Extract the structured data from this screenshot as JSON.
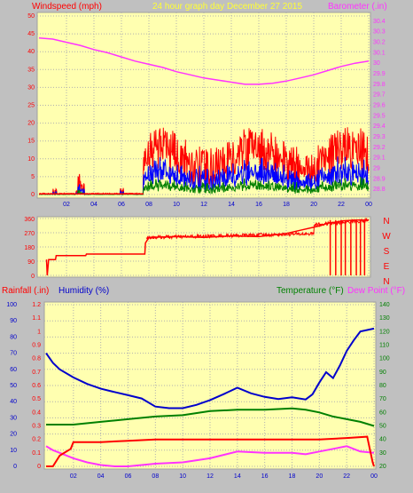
{
  "colors": {
    "background": "#c0c0c0",
    "plot_bg": "#ffffb0",
    "grid": "#b0b0b0",
    "wind": "#ff0000",
    "gust_blue": "#0000ff",
    "green": "#008000",
    "barometer": "#ff33ff",
    "title_yellow": "#ffff33",
    "rain": "#ff0000",
    "humidity": "#0000cc",
    "temperature": "#008000",
    "dewpoint": "#ff33ff"
  },
  "header": {
    "windspeed_label": "Windspeed (mph)",
    "title": "24 hour graph day   December 27 2015",
    "barometer_label": "Barometer (.in)"
  },
  "lower_header": {
    "rainfall_label": "Rainfall (.in)",
    "humidity_label": "Humidity (%)",
    "temperature_label": "Temperature (°F)",
    "dewpoint_label": "Dew Point (°F)"
  },
  "chart_data": [
    {
      "type": "line",
      "x_ticks": [
        "02",
        "04",
        "06",
        "08",
        "10",
        "12",
        "14",
        "16",
        "18",
        "20",
        "22",
        "00"
      ],
      "y_left_ticks": [
        "0",
        "5",
        "10",
        "15",
        "20",
        "25",
        "30",
        "35",
        "40",
        "45",
        "50"
      ],
      "ylim_left": [
        0,
        50
      ],
      "y_right_ticks": [
        "28.8",
        "28.9",
        "29",
        "29.1",
        "29.2",
        "29.3",
        "29.4",
        "29.5",
        "29.6",
        "29.7",
        "29.8",
        "29.9",
        "30",
        "30.1",
        "30.2",
        "30.3",
        "30.4"
      ],
      "ylim_right": [
        28.75,
        30.45
      ],
      "series": [
        {
          "axis": "right",
          "x": [
            0,
            1,
            2,
            3,
            4,
            5,
            6,
            7,
            8,
            9,
            10,
            11,
            12,
            13,
            14,
            15,
            16,
            17,
            18,
            19,
            20,
            21,
            22,
            23,
            24
          ],
          "values": [
            30.24,
            30.23,
            30.2,
            30.17,
            30.13,
            30.1,
            30.06,
            30.02,
            29.99,
            29.96,
            29.92,
            29.89,
            29.86,
            29.84,
            29.82,
            29.8,
            29.8,
            29.81,
            29.83,
            29.86,
            29.89,
            29.93,
            29.97,
            30.0,
            30.02
          ]
        }
      ]
    },
    {
      "type": "line",
      "x_ticks": [
        "02",
        "04",
        "06",
        "08",
        "10",
        "12",
        "14",
        "16",
        "18",
        "20",
        "22",
        "00"
      ],
      "y_left_ticks": [
        "0",
        "90",
        "180",
        "270",
        "360"
      ],
      "ylim": [
        0,
        360
      ],
      "compass_labels": [
        "N",
        "W",
        "S",
        "E",
        "N"
      ],
      "series": [
        {
          "x": [
            0.55,
            0.6,
            0.7,
            1.2,
            1.25,
            3.4,
            3.45,
            7.7,
            7.75,
            8.0,
            10.0,
            12.0,
            14.0,
            16.0,
            18.0,
            19.0,
            20.5,
            21.0,
            21.8,
            22.0,
            23.0,
            24.0
          ],
          "values": [
            100,
            0,
            100,
            100,
            125,
            125,
            135,
            135,
            205,
            240,
            245,
            240,
            250,
            245,
            265,
            285,
            315,
            330,
            340,
            345,
            350,
            350
          ]
        }
      ]
    },
    {
      "type": "line",
      "x_ticks": [
        "02",
        "04",
        "06",
        "08",
        "10",
        "12",
        "14",
        "16",
        "18",
        "20",
        "22",
        "00"
      ],
      "y_left_ticks": [
        "0",
        "10",
        "20",
        "30",
        "40",
        "50",
        "60",
        "70",
        "80",
        "90",
        "100"
      ],
      "ylim_left": [
        0,
        100
      ],
      "y_rain_ticks": [
        "0",
        "0.1",
        "0.2",
        "0.3",
        "0.4",
        "0.5",
        "0.6",
        "0.7",
        "0.8",
        "0.9",
        "1",
        "1.1",
        "1.2"
      ],
      "ylim_rain": [
        0,
        1.2
      ],
      "y_right_ticks": [
        "20",
        "30",
        "40",
        "50",
        "60",
        "70",
        "80",
        "90",
        "100",
        "110",
        "120",
        "130",
        "140"
      ],
      "ylim_right": [
        20,
        140
      ],
      "series": [
        {
          "name": "Humidity (%)",
          "axis": "left",
          "x": [
            0,
            0.5,
            1,
            2,
            3,
            4,
            5,
            6,
            7,
            8,
            9,
            10,
            11,
            12,
            13,
            14,
            15,
            16,
            17,
            18,
            19,
            19.5,
            20,
            20.5,
            21,
            21.5,
            22,
            22.5,
            23,
            24
          ],
          "values": [
            70,
            64,
            60,
            55,
            51,
            48,
            46,
            44,
            42,
            37,
            36,
            36,
            38,
            41,
            45,
            49,
            45,
            43,
            42,
            42,
            42,
            45,
            52,
            58,
            54,
            62,
            72,
            78,
            84,
            85
          ]
        },
        {
          "name": "Temperature (°F)",
          "axis": "right",
          "x": [
            0,
            2,
            4,
            6,
            8,
            10,
            12,
            14,
            16,
            18,
            19,
            20,
            21,
            22,
            23,
            24
          ],
          "values": [
            51,
            51,
            53,
            55,
            57,
            58,
            61,
            62,
            62,
            63,
            62,
            60,
            57,
            55,
            53,
            50
          ]
        },
        {
          "name": "Dew Point (°F)",
          "axis": "right",
          "x": [
            0,
            0.5,
            1,
            2,
            3,
            4,
            5,
            6,
            7,
            8,
            10,
            12,
            14,
            16,
            18,
            19,
            20,
            21,
            22,
            23,
            24
          ],
          "values": [
            35,
            32,
            30,
            26,
            23,
            21,
            20,
            20,
            21,
            22,
            23,
            26,
            31,
            30,
            30,
            29,
            31,
            33,
            35,
            31,
            30
          ]
        },
        {
          "name": "Rainfall (.in)",
          "axis": "rain",
          "x": [
            0,
            0.5,
            1.0,
            1.8,
            2.0,
            3.5,
            4.0,
            6.0,
            8.0,
            10.0,
            12.0,
            14.0,
            16.0,
            18.0,
            20.0,
            22.0,
            23.5,
            23.9,
            24
          ],
          "values": [
            0.0,
            0.0,
            0.08,
            0.13,
            0.18,
            0.18,
            0.18,
            0.19,
            0.2,
            0.2,
            0.2,
            0.2,
            0.2,
            0.2,
            0.2,
            0.21,
            0.22,
            0.03,
            0.0
          ]
        }
      ]
    }
  ]
}
